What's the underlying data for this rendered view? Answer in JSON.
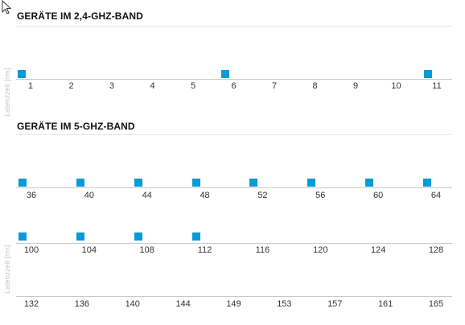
{
  "colors": {
    "marker": "#0a9ad6"
  },
  "sections": [
    {
      "title": "GERÄTE IM 2,4-GHZ-BAND",
      "ylabel": "Latenzzeit [ms]",
      "rows": [
        {
          "channels": [
            "1",
            "2",
            "3",
            "4",
            "5",
            "6",
            "7",
            "8",
            "9",
            "10",
            "11"
          ],
          "marker_channels": [
            "1",
            "6",
            "11"
          ]
        }
      ]
    },
    {
      "title": "GERÄTE IM 5-GHZ-BAND",
      "ylabel": "Latenzzeit [ms]",
      "rows": [
        {
          "channels": [
            "36",
            "40",
            "44",
            "48",
            "52",
            "56",
            "60",
            "64"
          ],
          "marker_channels": [
            "36",
            "40",
            "44",
            "48",
            "52",
            "56",
            "60",
            "64"
          ]
        },
        {
          "channels": [
            "100",
            "104",
            "108",
            "112",
            "116",
            "120",
            "124",
            "128"
          ],
          "marker_channels": [
            "100",
            "104",
            "108",
            "112"
          ]
        },
        {
          "channels": [
            "132",
            "136",
            "140",
            "144",
            "149",
            "153",
            "157",
            "161",
            "165"
          ],
          "marker_channels": []
        }
      ]
    }
  ]
}
